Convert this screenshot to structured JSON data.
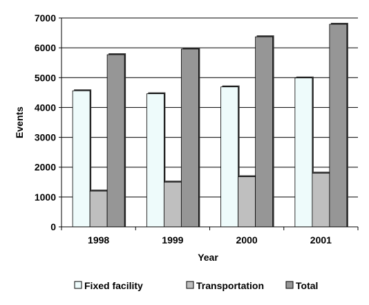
{
  "chart_data": {
    "type": "bar",
    "title": "",
    "xlabel": "Year",
    "ylabel": "Events",
    "categories": [
      "1998",
      "1999",
      "2000",
      "2001"
    ],
    "ylim": [
      0,
      7000
    ],
    "yticks": [
      0,
      1000,
      2000,
      3000,
      4000,
      5000,
      6000,
      7000
    ],
    "ytick_labels": [
      "0",
      "1000",
      "2000",
      "3000",
      "4000",
      "5000",
      "6000",
      "7000"
    ],
    "grid": true,
    "legend_position": "bottom",
    "series": [
      {
        "name": "Fixed facility",
        "values": [
          4560,
          4460,
          4690,
          4990
        ],
        "color": "#eefbfb"
      },
      {
        "name": "Transportation",
        "values": [
          1200,
          1500,
          1680,
          1800
        ],
        "color": "#bfbfbf"
      },
      {
        "name": "Total",
        "values": [
          5770,
          5960,
          6370,
          6790
        ],
        "color": "#969696"
      }
    ]
  }
}
